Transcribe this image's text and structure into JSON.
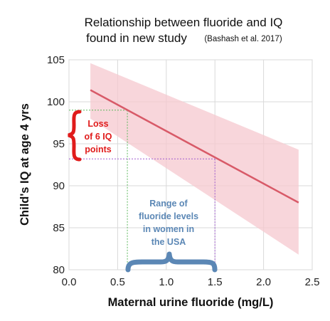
{
  "chart_data": {
    "type": "line",
    "title_line1": "Relationship between fluoride and IQ",
    "title_line2": "found in new study",
    "source": "(Bashash et al. 2017)",
    "xlabel": "Maternal urine fluoride (mg/L)",
    "ylabel": "Child's IQ at age 4 yrs",
    "xlim": [
      0.0,
      2.5
    ],
    "ylim": [
      80,
      105
    ],
    "x_ticks": [
      "0.0",
      "0.5",
      "1.0",
      "1.5",
      "2.0",
      "2.5"
    ],
    "y_ticks": [
      "80",
      "85",
      "90",
      "95",
      "100",
      "105"
    ],
    "grid": true,
    "series": [
      {
        "x": [
          0.22,
          2.36
        ],
        "y": [
          101.4,
          88.0
        ]
      }
    ],
    "confidence_band": {
      "x": [
        0.22,
        2.36
      ],
      "lower": [
        98.0,
        81.8
      ],
      "upper": [
        104.6,
        94.3
      ]
    },
    "reference_lines": {
      "x_low": 0.6,
      "x_high": 1.5,
      "y_high": 99.0,
      "y_low": 93.2
    },
    "annotations": {
      "loss_label": [
        "Loss",
        "of 6 IQ",
        "points"
      ],
      "range_label": [
        "Range of",
        "fluoride levels",
        "in women in",
        "the USA"
      ]
    },
    "colors": {
      "line": "#d85a68",
      "band": "#f5c8cf",
      "grid": "#d9d9d9",
      "ref_green": "#5cb85c",
      "ref_purple": "#a05ad0",
      "brace_red": "#e01b1b",
      "brace_blue": "#5b87b5",
      "annotation_red": "#e01b1b",
      "annotation_blue": "#5b87b5"
    }
  }
}
